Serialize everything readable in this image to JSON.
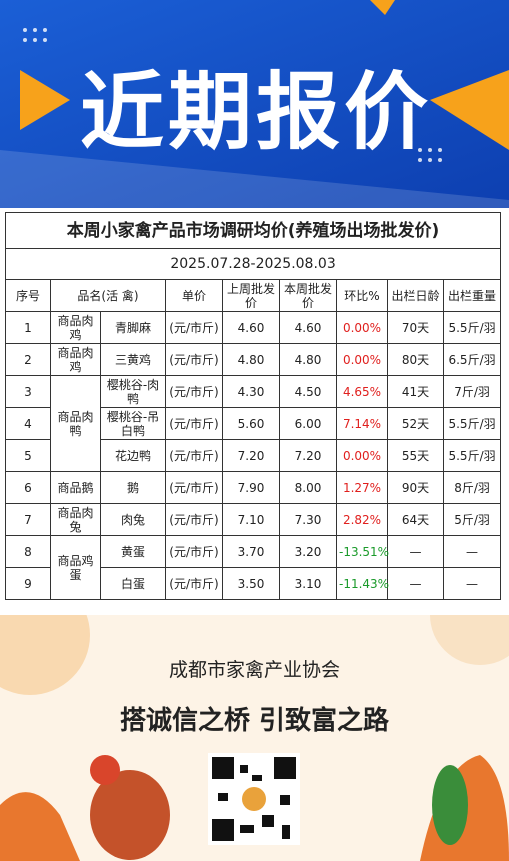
{
  "banner": {
    "title": "近期报价"
  },
  "table": {
    "title": "本周小家禽产品市场调研均价(养殖场出场批发价)",
    "date": "2025.07.28-2025.08.03",
    "headers": [
      "序号",
      "品名(活 禽)",
      "单价",
      "上周批发价",
      "本周批发价",
      "环比%",
      "出栏日龄",
      "出栏重量"
    ],
    "groups": [
      {
        "label": "商品肉鸡",
        "items": [
          {
            "seq": 1,
            "name": "青脚麻",
            "unit": "(元/市斤)",
            "last": "4.60",
            "this": "4.60",
            "change": "0.00%",
            "age": "70天",
            "weight": "5.5斤/羽"
          }
        ]
      },
      {
        "label": "商品肉鸡",
        "items": [
          {
            "seq": 2,
            "name": "三黄鸡",
            "unit": "(元/市斤)",
            "last": "4.80",
            "this": "4.80",
            "change": "0.00%",
            "age": "80天",
            "weight": "6.5斤/羽"
          }
        ]
      },
      {
        "label": "商品肉鸭",
        "items": [
          {
            "seq": 3,
            "name": "樱桃谷-肉鸭",
            "unit": "(元/市斤)",
            "last": "4.30",
            "this": "4.50",
            "change": "4.65%",
            "age": "41天",
            "weight": "7斤/羽"
          },
          {
            "seq": 4,
            "name": "樱桃谷-吊白鸭",
            "unit": "(元/市斤)",
            "last": "5.60",
            "this": "6.00",
            "change": "7.14%",
            "age": "52天",
            "weight": "5.5斤/羽"
          },
          {
            "seq": 5,
            "name": "花边鸭",
            "unit": "(元/市斤)",
            "last": "7.20",
            "this": "7.20",
            "change": "0.00%",
            "age": "55天",
            "weight": "5.5斤/羽"
          }
        ]
      },
      {
        "label": "商品鹅",
        "items": [
          {
            "seq": 6,
            "name": "鹅",
            "unit": "(元/市斤)",
            "last": "7.90",
            "this": "8.00",
            "change": "1.27%",
            "age": "90天",
            "weight": "8斤/羽"
          }
        ]
      },
      {
        "label": "商品肉兔",
        "items": [
          {
            "seq": 7,
            "name": "肉兔",
            "unit": "(元/市斤)",
            "last": "7.10",
            "this": "7.30",
            "change": "2.82%",
            "age": "64天",
            "weight": "5斤/羽"
          }
        ]
      },
      {
        "label": "商品鸡蛋",
        "items": [
          {
            "seq": 8,
            "name": "黄蛋",
            "unit": "(元/市斤)",
            "last": "3.70",
            "this": "3.20",
            "change": "-13.51%",
            "age": "—",
            "weight": "—"
          },
          {
            "seq": 9,
            "name": "白蛋",
            "unit": "(元/市斤)",
            "last": "3.50",
            "this": "3.10",
            "change": "-11.43%",
            "age": "—",
            "weight": "—"
          }
        ]
      }
    ]
  },
  "footer": {
    "association": "成都市家禽产业协会",
    "slogan": "搭诚信之桥 引致富之路"
  }
}
